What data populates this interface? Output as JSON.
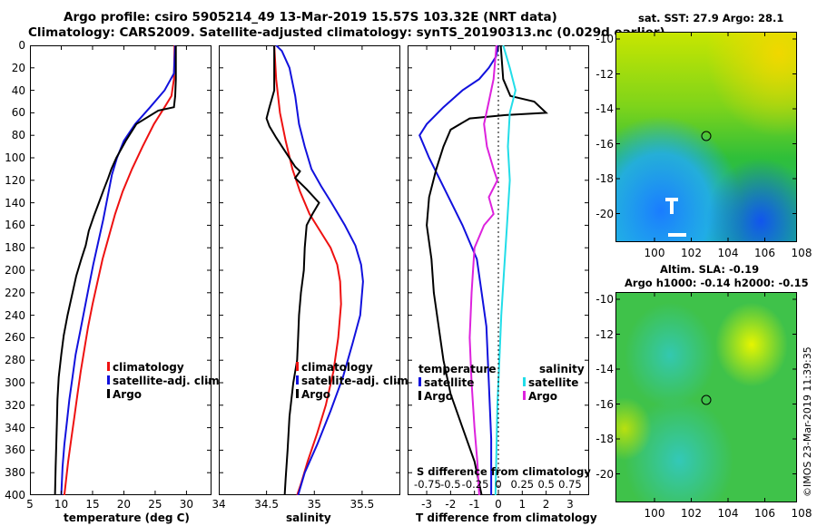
{
  "header": {
    "line1": "Argo profile: csiro 5905214_49 13-Mar-2019 15.57S 103.32E (NRT data)",
    "line2": "Climatology: CARS2009. Satellite-adjusted climatology: synTS_20190313.nc (0.029d earlier)"
  },
  "colors": {
    "climatology": "#ee1111",
    "satellite": "#1111dd",
    "argo": "#000000",
    "sat_salinity": "#22dde8",
    "argo_salinity": "#dd22dd"
  },
  "depth_axis": {
    "ticks": [
      0,
      20,
      40,
      60,
      80,
      100,
      120,
      140,
      160,
      180,
      200,
      220,
      240,
      260,
      280,
      300,
      320,
      340,
      360,
      380,
      400
    ],
    "range": [
      0,
      400
    ]
  },
  "chart_data": [
    {
      "type": "line",
      "id": "temperature",
      "xlabel": "temperature (deg C)",
      "xlim": [
        5,
        34
      ],
      "xticks": [
        5,
        10,
        15,
        20,
        25,
        30
      ],
      "ylim": [
        400,
        0
      ],
      "legend": {
        "position": "lower-right",
        "entries": [
          "climatology",
          "satellite-adj. clim.",
          "Argo"
        ]
      },
      "series": [
        {
          "name": "climatology",
          "color": "#ee1111",
          "points": [
            [
              28.1,
              0
            ],
            [
              28.0,
              30
            ],
            [
              27.6,
              45
            ],
            [
              26.5,
              55
            ],
            [
              24.8,
              70
            ],
            [
              23.0,
              90
            ],
            [
              21.3,
              110
            ],
            [
              19.8,
              130
            ],
            [
              18.6,
              150
            ],
            [
              17.6,
              170
            ],
            [
              16.6,
              190
            ],
            [
              15.8,
              210
            ],
            [
              15.0,
              230
            ],
            [
              14.3,
              250
            ],
            [
              13.7,
              270
            ],
            [
              13.1,
              290
            ],
            [
              12.6,
              310
            ],
            [
              12.1,
              330
            ],
            [
              11.6,
              350
            ],
            [
              11.1,
              370
            ],
            [
              10.7,
              390
            ],
            [
              10.5,
              400
            ]
          ]
        },
        {
          "name": "satellite-adj. clim.",
          "color": "#1111dd",
          "points": [
            [
              28.2,
              0
            ],
            [
              28.0,
              25
            ],
            [
              26.5,
              40
            ],
            [
              24.2,
              55
            ],
            [
              21.8,
              70
            ],
            [
              20.0,
              85
            ],
            [
              18.9,
              100
            ],
            [
              18.1,
              115
            ],
            [
              17.4,
              135
            ],
            [
              16.7,
              155
            ],
            [
              15.9,
              175
            ],
            [
              15.1,
              195
            ],
            [
              14.4,
              215
            ],
            [
              13.7,
              235
            ],
            [
              13.0,
              255
            ],
            [
              12.3,
              275
            ],
            [
              11.8,
              295
            ],
            [
              11.3,
              315
            ],
            [
              10.9,
              335
            ],
            [
              10.5,
              355
            ],
            [
              10.2,
              375
            ],
            [
              10.0,
              400
            ]
          ]
        },
        {
          "name": "Argo",
          "color": "#000000",
          "points": [
            [
              28.3,
              0
            ],
            [
              28.3,
              30
            ],
            [
              28.2,
              45
            ],
            [
              28.0,
              55
            ],
            [
              25.5,
              58
            ],
            [
              22.0,
              70
            ],
            [
              20.3,
              85
            ],
            [
              18.8,
              100
            ],
            [
              18.0,
              110
            ],
            [
              17.5,
              118
            ],
            [
              16.8,
              128
            ],
            [
              16.0,
              140
            ],
            [
              15.2,
              152
            ],
            [
              14.4,
              165
            ],
            [
              13.9,
              178
            ],
            [
              13.2,
              190
            ],
            [
              12.4,
              205
            ],
            [
              11.8,
              220
            ],
            [
              11.0,
              240
            ],
            [
              10.4,
              258
            ],
            [
              10.0,
              275
            ],
            [
              9.6,
              295
            ],
            [
              9.4,
              315
            ],
            [
              9.3,
              335
            ],
            [
              9.2,
              355
            ],
            [
              9.1,
              375
            ],
            [
              9.0,
              400
            ]
          ]
        }
      ]
    },
    {
      "type": "line",
      "id": "salinity",
      "xlabel": "salinity",
      "xlim": [
        34,
        35.9
      ],
      "xticks": [
        34,
        34.5,
        35,
        35.5
      ],
      "ylim": [
        400,
        0
      ],
      "legend": {
        "position": "lower-right",
        "entries": [
          "climatology",
          "satellite-adj. clim.",
          "Argo"
        ]
      },
      "series": [
        {
          "name": "climatology",
          "color": "#ee1111",
          "points": [
            [
              34.58,
              0
            ],
            [
              34.6,
              30
            ],
            [
              34.64,
              60
            ],
            [
              34.7,
              85
            ],
            [
              34.77,
              110
            ],
            [
              34.85,
              130
            ],
            [
              34.95,
              150
            ],
            [
              35.06,
              165
            ],
            [
              35.17,
              180
            ],
            [
              35.24,
              195
            ],
            [
              35.27,
              210
            ],
            [
              35.28,
              230
            ],
            [
              35.25,
              260
            ],
            [
              35.2,
              290
            ],
            [
              35.12,
              320
            ],
            [
              35.03,
              345
            ],
            [
              34.93,
              370
            ],
            [
              34.86,
              390
            ],
            [
              34.82,
              400
            ]
          ]
        },
        {
          "name": "satellite-adj. clim.",
          "color": "#1111dd",
          "points": [
            [
              34.6,
              0
            ],
            [
              34.66,
              5
            ],
            [
              34.74,
              20
            ],
            [
              34.8,
              45
            ],
            [
              34.84,
              70
            ],
            [
              34.9,
              90
            ],
            [
              34.97,
              110
            ],
            [
              35.07,
              125
            ],
            [
              35.18,
              140
            ],
            [
              35.32,
              160
            ],
            [
              35.43,
              178
            ],
            [
              35.49,
              195
            ],
            [
              35.51,
              210
            ],
            [
              35.48,
              240
            ],
            [
              35.4,
              265
            ],
            [
              35.3,
              295
            ],
            [
              35.17,
              325
            ],
            [
              35.03,
              355
            ],
            [
              34.9,
              380
            ],
            [
              34.83,
              400
            ]
          ]
        },
        {
          "name": "Argo",
          "color": "#000000",
          "points": [
            [
              34.58,
              0
            ],
            [
              34.58,
              40
            ],
            [
              34.53,
              55
            ],
            [
              34.5,
              65
            ],
            [
              34.53,
              72
            ],
            [
              34.6,
              82
            ],
            [
              34.7,
              95
            ],
            [
              34.8,
              108
            ],
            [
              34.85,
              112
            ],
            [
              34.8,
              118
            ],
            [
              34.92,
              128
            ],
            [
              35.05,
              140
            ],
            [
              34.98,
              150
            ],
            [
              34.92,
              160
            ],
            [
              34.9,
              180
            ],
            [
              34.89,
              200
            ],
            [
              34.86,
              220
            ],
            [
              34.84,
              240
            ],
            [
              34.83,
              260
            ],
            [
              34.82,
              280
            ],
            [
              34.78,
              300
            ],
            [
              34.74,
              330
            ],
            [
              34.72,
              360
            ],
            [
              34.7,
              385
            ],
            [
              34.69,
              400
            ]
          ]
        }
      ]
    },
    {
      "type": "line",
      "id": "difference",
      "xlabel": "T difference from climatology",
      "xlabel_top": "S difference from climatology",
      "xlim": [
        -3.8,
        3.8
      ],
      "xticks": [
        -3,
        -2,
        -1,
        0,
        1,
        2,
        3
      ],
      "xticks_s": [
        "-0.75",
        "-0.5",
        "-0.25",
        "0",
        "0.25",
        "0.5",
        "0.75"
      ],
      "ylim": [
        400,
        0
      ],
      "legend": {
        "position": "lower",
        "temperature_title": "temperature",
        "salinity_title": "salinity",
        "entries_t": [
          "satellite",
          "Argo"
        ],
        "entries_s": [
          "satellite",
          "Argo"
        ]
      },
      "series": [
        {
          "name": "T satellite",
          "color": "#1111dd",
          "points": [
            [
              0.0,
              0
            ],
            [
              -0.1,
              10
            ],
            [
              -0.4,
              20
            ],
            [
              -0.8,
              30
            ],
            [
              -1.5,
              40
            ],
            [
              -2.3,
              55
            ],
            [
              -3.0,
              70
            ],
            [
              -3.3,
              80
            ],
            [
              -2.9,
              100
            ],
            [
              -2.2,
              130
            ],
            [
              -1.5,
              160
            ],
            [
              -0.9,
              190
            ],
            [
              -0.7,
              220
            ],
            [
              -0.5,
              250
            ],
            [
              -0.4,
              300
            ],
            [
              -0.3,
              350
            ],
            [
              -0.3,
              400
            ]
          ]
        },
        {
          "name": "T Argo",
          "color": "#000000",
          "points": [
            [
              0.1,
              0
            ],
            [
              0.2,
              30
            ],
            [
              0.5,
              45
            ],
            [
              1.5,
              50
            ],
            [
              2.0,
              60
            ],
            [
              0.3,
              62
            ],
            [
              -1.2,
              65
            ],
            [
              -2.0,
              75
            ],
            [
              -2.3,
              90
            ],
            [
              -2.6,
              110
            ],
            [
              -2.9,
              135
            ],
            [
              -3.0,
              160
            ],
            [
              -2.8,
              190
            ],
            [
              -2.7,
              220
            ],
            [
              -2.5,
              250
            ],
            [
              -2.3,
              280
            ],
            [
              -2.0,
              310
            ],
            [
              -1.5,
              340
            ],
            [
              -1.0,
              370
            ],
            [
              -0.7,
              400
            ]
          ]
        },
        {
          "name": "S satellite",
          "color": "#22dde8",
          "points": [
            [
              0.05,
              0
            ],
            [
              0.12,
              20
            ],
            [
              0.18,
              40
            ],
            [
              0.12,
              60
            ],
            [
              0.1,
              90
            ],
            [
              0.12,
              120
            ],
            [
              0.09,
              160
            ],
            [
              0.06,
              200
            ],
            [
              0.03,
              240
            ],
            [
              0.01,
              280
            ],
            [
              -0.01,
              320
            ],
            [
              -0.02,
              360
            ],
            [
              -0.03,
              400
            ]
          ]
        },
        {
          "name": "S Argo",
          "color": "#dd22dd",
          "points": [
            [
              -0.02,
              0
            ],
            [
              -0.05,
              30
            ],
            [
              -0.1,
              50
            ],
            [
              -0.15,
              70
            ],
            [
              -0.12,
              90
            ],
            [
              -0.05,
              110
            ],
            [
              -0.01,
              120
            ],
            [
              -0.1,
              135
            ],
            [
              -0.05,
              150
            ],
            [
              -0.15,
              160
            ],
            [
              -0.25,
              180
            ],
            [
              -0.28,
              220
            ],
            [
              -0.3,
              260
            ],
            [
              -0.28,
              300
            ],
            [
              -0.25,
              340
            ],
            [
              -0.22,
              370
            ],
            [
              -0.2,
              400
            ]
          ]
        }
      ]
    }
  ],
  "maps": {
    "sst": {
      "title": "sat. SST: 27.9 Argo: 28.1",
      "lat_ticks": [
        "-10",
        "-12",
        "-14",
        "-16",
        "-18",
        "-20"
      ],
      "lon_ticks": [
        "100",
        "102",
        "104",
        "106",
        "108"
      ]
    },
    "sla": {
      "title_line1": "Altim. SLA: -0.19",
      "title_line2": "Argo h1000: -0.14 h2000: -0.15",
      "lat_ticks": [
        "-10",
        "-12",
        "-14",
        "-16",
        "-18",
        "-20"
      ],
      "lon_ticks": [
        "100",
        "102",
        "104",
        "106",
        "108"
      ]
    }
  },
  "timestamp": "©IMOS 23-Mar-2019 11:39:35"
}
